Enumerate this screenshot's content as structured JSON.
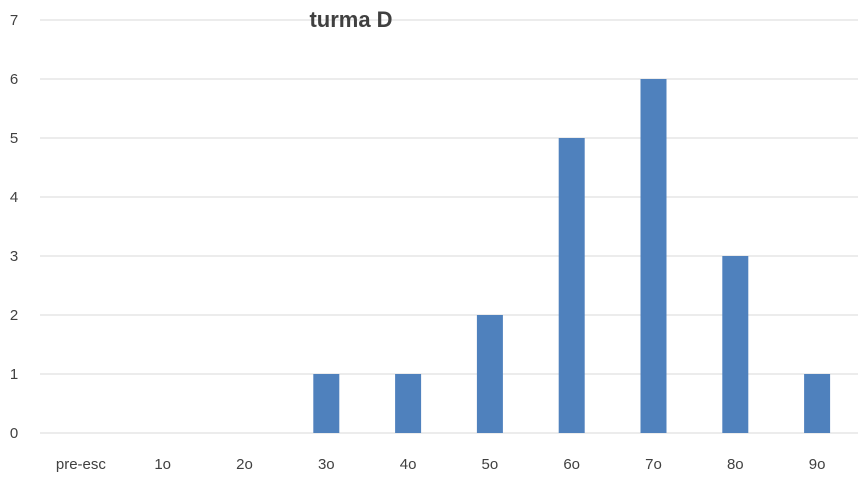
{
  "chart_data": {
    "type": "bar",
    "title": "turma D",
    "categories": [
      "pre-esc",
      "1o",
      "2o",
      "3o",
      "4o",
      "5o",
      "6o",
      "7o",
      "8o",
      "9o"
    ],
    "values": [
      0,
      0,
      0,
      1,
      1,
      2,
      5,
      6,
      3,
      1
    ],
    "ylim": [
      0,
      7
    ],
    "yticks": [
      "0",
      "1",
      "2",
      "3",
      "4",
      "5",
      "6",
      "7"
    ],
    "grid": true,
    "legend": "none",
    "bar_color": "#4F81BD",
    "grid_color": "#D9D9D9",
    "text_color": "#404040"
  }
}
